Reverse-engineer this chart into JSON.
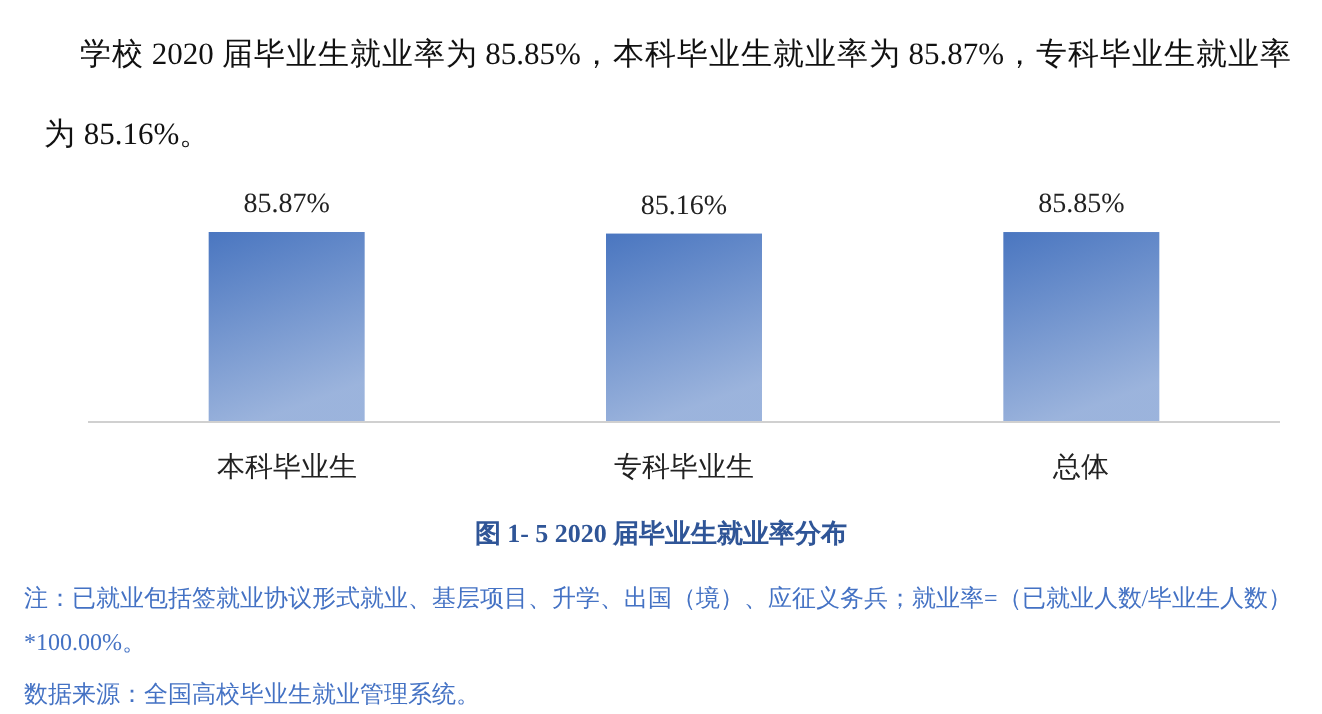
{
  "chart_data": {
    "type": "bar",
    "subtitle": "学校 2020 届毕业生就业率为 85.85%，本科毕业生就业率为 85.87%，专科毕业生就业率为 85.16%。",
    "title": "图 1- 5    2020 届毕业生就业率分布",
    "categories": [
      "本科毕业生",
      "专科毕业生",
      "总体"
    ],
    "values": [
      85.87,
      85.16,
      85.85
    ],
    "color": "#4a76c0",
    "value_labels": [
      "85.87%",
      "85.16%",
      "85.85%"
    ],
    "annotations": [
      "注：已就业包括签就业协议形式就业、基层项目、升学、出国（境）、应征义务兵；就业率=（已就业人数/毕业生人数）*100.00%。",
      "数据来源：全国高校毕业生就业管理系统。"
    ]
  }
}
